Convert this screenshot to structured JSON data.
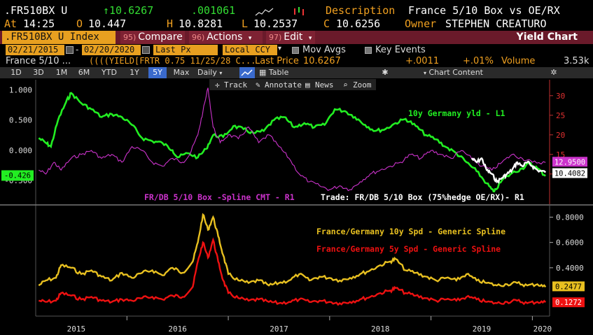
{
  "header": {
    "ticker": ".FR510BX U",
    "price": "↑10.6267",
    "change": ".001061",
    "description_label": "Description",
    "description": "France 5/10 Box vs OE/RX",
    "at_label": "At",
    "time": "14:25",
    "open_label": "O",
    "open": "10.447",
    "high_label": "H",
    "high": "10.8281",
    "low_label": "L",
    "low": "10.2537",
    "close_label": "C",
    "close": "10.6256",
    "owner_label": "Owner",
    "owner": "STEPHEN CREATURO"
  },
  "menu": {
    "ticker_tab": ".FR510BX U Index",
    "compare_num": "95)",
    "compare": "Compare",
    "actions_num": "96)",
    "actions": "Actions",
    "edit_num": "97)",
    "edit": "Edit",
    "title": "Yield Chart"
  },
  "settings": {
    "start_date": "02/21/2015",
    "end_date": "02/20/2020",
    "field": "Last Px",
    "currency": "Local CCY",
    "mov_avgs": "Mov Avgs",
    "key_events": "Key Events"
  },
  "info": {
    "name": "France 5/10 ...",
    "yield_desc": "((((YIELD[FRTR 0.75 11/25/28 C...",
    "last_price_label": "Last Price",
    "last_price": "10.6267",
    "chg_abs": "+.0011",
    "chg_pct": "+.01%",
    "volume_label": "Volume",
    "volume": "3.53k"
  },
  "toolbar": {
    "periods": [
      "1D",
      "3D",
      "1M",
      "6M",
      "YTD",
      "1Y",
      "5Y",
      "Max"
    ],
    "selected": "5Y",
    "frequency": "Daily",
    "table": "Table",
    "chart_content": "Chart Content",
    "track": "Track",
    "annotate": "Annotate",
    "news": "News",
    "zoom": "Zoom"
  },
  "colors": {
    "green": "#22ee22",
    "magenta": "#cc33cc",
    "white": "#ffffff",
    "yellow": "#e8c020",
    "red": "#ee1111",
    "orange": "#f0a020"
  },
  "chart_data": [
    {
      "type": "line",
      "x_ticks": [
        "2015",
        "2016",
        "2017",
        "2018",
        "2019",
        "2020"
      ],
      "y_left_ticks": [
        "1.000",
        "0.500",
        "0.000",
        "-0.500"
      ],
      "y_left_lim": [
        -0.85,
        1.1
      ],
      "y_right_ticks": [
        "30",
        "25",
        "20",
        "15",
        "10"
      ],
      "y_right_lim": [
        3,
        33
      ],
      "series": [
        {
          "name": "10y Germany yld - L1",
          "axis": "left",
          "color": "#22ee22",
          "last_label": "-0.426",
          "points": [
            [
              2015.13,
              0.2
            ],
            [
              2015.2,
              0.12
            ],
            [
              2015.25,
              0.06
            ],
            [
              2015.32,
              0.5
            ],
            [
              2015.4,
              0.8
            ],
            [
              2015.45,
              0.95
            ],
            [
              2015.55,
              0.78
            ],
            [
              2015.65,
              0.68
            ],
            [
              2015.75,
              0.55
            ],
            [
              2015.85,
              0.6
            ],
            [
              2015.95,
              0.55
            ],
            [
              2016.05,
              0.42
            ],
            [
              2016.15,
              0.2
            ],
            [
              2016.25,
              0.15
            ],
            [
              2016.35,
              0.12
            ],
            [
              2016.45,
              0.0
            ],
            [
              2016.5,
              -0.12
            ],
            [
              2016.6,
              -0.05
            ],
            [
              2016.7,
              -0.12
            ],
            [
              2016.78,
              0.02
            ],
            [
              2016.85,
              0.25
            ],
            [
              2016.95,
              0.22
            ],
            [
              2017.05,
              0.4
            ],
            [
              2017.15,
              0.35
            ],
            [
              2017.25,
              0.28
            ],
            [
              2017.35,
              0.32
            ],
            [
              2017.45,
              0.5
            ],
            [
              2017.55,
              0.55
            ],
            [
              2017.65,
              0.38
            ],
            [
              2017.75,
              0.45
            ],
            [
              2017.85,
              0.38
            ],
            [
              2017.95,
              0.42
            ],
            [
              2018.05,
              0.68
            ],
            [
              2018.15,
              0.65
            ],
            [
              2018.25,
              0.55
            ],
            [
              2018.35,
              0.42
            ],
            [
              2018.45,
              0.32
            ],
            [
              2018.55,
              0.35
            ],
            [
              2018.65,
              0.45
            ],
            [
              2018.75,
              0.52
            ],
            [
              2018.85,
              0.4
            ],
            [
              2018.95,
              0.25
            ],
            [
              2019.05,
              0.18
            ],
            [
              2019.15,
              0.05
            ],
            [
              2019.25,
              -0.05
            ],
            [
              2019.35,
              -0.2
            ],
            [
              2019.45,
              -0.35
            ],
            [
              2019.55,
              -0.55
            ],
            [
              2019.62,
              -0.7
            ],
            [
              2019.7,
              -0.5
            ],
            [
              2019.8,
              -0.38
            ],
            [
              2019.9,
              -0.3
            ],
            [
              2019.97,
              -0.22
            ],
            [
              2020.05,
              -0.3
            ],
            [
              2020.13,
              -0.426
            ]
          ]
        },
        {
          "name": "FR/DB 5/10 Box -Spline CMT - R1",
          "axis": "right",
          "color": "#cc33cc",
          "last_label": "12.9500",
          "points": [
            [
              2015.13,
              11
            ],
            [
              2015.2,
              10
            ],
            [
              2015.28,
              13
            ],
            [
              2015.35,
              11
            ],
            [
              2015.45,
              14
            ],
            [
              2015.55,
              15
            ],
            [
              2015.65,
              16
            ],
            [
              2015.75,
              14
            ],
            [
              2015.85,
              15
            ],
            [
              2015.95,
              13
            ],
            [
              2016.05,
              17
            ],
            [
              2016.15,
              16
            ],
            [
              2016.25,
              13
            ],
            [
              2016.35,
              12
            ],
            [
              2016.45,
              14
            ],
            [
              2016.55,
              13
            ],
            [
              2016.62,
              15
            ],
            [
              2016.7,
              20
            ],
            [
              2016.75,
              26
            ],
            [
              2016.8,
              32
            ],
            [
              2016.85,
              22
            ],
            [
              2016.92,
              18
            ],
            [
              2017.0,
              20
            ],
            [
              2017.1,
              19
            ],
            [
              2017.2,
              22
            ],
            [
              2017.3,
              18
            ],
            [
              2017.4,
              20
            ],
            [
              2017.5,
              17
            ],
            [
              2017.6,
              14
            ],
            [
              2017.7,
              10
            ],
            [
              2017.8,
              8
            ],
            [
              2017.9,
              7
            ],
            [
              2018.0,
              6
            ],
            [
              2018.1,
              7
            ],
            [
              2018.2,
              6
            ],
            [
              2018.3,
              8
            ],
            [
              2018.4,
              10
            ],
            [
              2018.5,
              11
            ],
            [
              2018.6,
              12
            ],
            [
              2018.7,
              13
            ],
            [
              2018.8,
              15
            ],
            [
              2018.9,
              14
            ],
            [
              2019.0,
              16
            ],
            [
              2019.1,
              15
            ],
            [
              2019.2,
              14
            ],
            [
              2019.3,
              16
            ],
            [
              2019.4,
              14
            ],
            [
              2019.5,
              12
            ],
            [
              2019.6,
              11
            ],
            [
              2019.7,
              13
            ],
            [
              2019.8,
              15
            ],
            [
              2019.9,
              14
            ],
            [
              2020.0,
              13
            ],
            [
              2020.13,
              12.95
            ]
          ]
        },
        {
          "name": "Trade: FR/DB 5/10 Box (75%hedge OE/RX)- R1",
          "axis": "right",
          "color": "#ffffff",
          "last_label": "10.4082",
          "points": [
            [
              2019.4,
              14
            ],
            [
              2019.45,
              13
            ],
            [
              2019.5,
              14
            ],
            [
              2019.55,
              11
            ],
            [
              2019.6,
              10
            ],
            [
              2019.65,
              8
            ],
            [
              2019.7,
              9
            ],
            [
              2019.75,
              10
            ],
            [
              2019.8,
              11
            ],
            [
              2019.85,
              13
            ],
            [
              2019.9,
              12
            ],
            [
              2019.95,
              13
            ],
            [
              2020.0,
              12
            ],
            [
              2020.05,
              11
            ],
            [
              2020.13,
              10.4082
            ]
          ]
        }
      ]
    },
    {
      "type": "line",
      "x_ticks": [
        "2015",
        "2016",
        "2017",
        "2018",
        "2019",
        "2020"
      ],
      "y_right_ticks": [
        "0.8000",
        "0.6000",
        "0.4000"
      ],
      "y_lim": [
        0.04,
        0.88
      ],
      "series": [
        {
          "name": "France/Germany 10y Spd - Generic Spline",
          "color": "#e8c020",
          "last_label": "0.2477",
          "points": [
            [
              2015.13,
              0.26
            ],
            [
              2015.2,
              0.3
            ],
            [
              2015.3,
              0.32
            ],
            [
              2015.35,
              0.42
            ],
            [
              2015.45,
              0.4
            ],
            [
              2015.55,
              0.35
            ],
            [
              2015.65,
              0.38
            ],
            [
              2015.75,
              0.33
            ],
            [
              2015.85,
              0.3
            ],
            [
              2015.95,
              0.36
            ],
            [
              2016.05,
              0.32
            ],
            [
              2016.15,
              0.36
            ],
            [
              2016.25,
              0.38
            ],
            [
              2016.35,
              0.34
            ],
            [
              2016.45,
              0.4
            ],
            [
              2016.55,
              0.36
            ],
            [
              2016.65,
              0.45
            ],
            [
              2016.7,
              0.6
            ],
            [
              2016.75,
              0.82
            ],
            [
              2016.8,
              0.7
            ],
            [
              2016.85,
              0.8
            ],
            [
              2016.9,
              0.65
            ],
            [
              2016.95,
              0.5
            ],
            [
              2017.0,
              0.35
            ],
            [
              2017.1,
              0.3
            ],
            [
              2017.2,
              0.28
            ],
            [
              2017.3,
              0.3
            ],
            [
              2017.4,
              0.26
            ],
            [
              2017.5,
              0.28
            ],
            [
              2017.6,
              0.3
            ],
            [
              2017.7,
              0.35
            ],
            [
              2017.8,
              0.3
            ],
            [
              2017.9,
              0.33
            ],
            [
              2018.0,
              0.32
            ],
            [
              2018.1,
              0.3
            ],
            [
              2018.2,
              0.32
            ],
            [
              2018.3,
              0.35
            ],
            [
              2018.4,
              0.38
            ],
            [
              2018.5,
              0.42
            ],
            [
              2018.6,
              0.45
            ],
            [
              2018.65,
              0.47
            ],
            [
              2018.75,
              0.38
            ],
            [
              2018.85,
              0.36
            ],
            [
              2018.95,
              0.33
            ],
            [
              2019.05,
              0.3
            ],
            [
              2019.15,
              0.32
            ],
            [
              2019.25,
              0.3
            ],
            [
              2019.35,
              0.35
            ],
            [
              2019.45,
              0.3
            ],
            [
              2019.55,
              0.28
            ],
            [
              2019.65,
              0.26
            ],
            [
              2019.75,
              0.27
            ],
            [
              2019.85,
              0.28
            ],
            [
              2019.95,
              0.26
            ],
            [
              2020.05,
              0.27
            ],
            [
              2020.13,
              0.2477
            ]
          ]
        },
        {
          "name": "France/Germany 5y Spd - Generic Spline",
          "color": "#ee1111",
          "last_label": "0.1272",
          "points": [
            [
              2015.13,
              0.14
            ],
            [
              2015.2,
              0.13
            ],
            [
              2015.3,
              0.14
            ],
            [
              2015.35,
              0.2
            ],
            [
              2015.45,
              0.18
            ],
            [
              2015.55,
              0.15
            ],
            [
              2015.65,
              0.17
            ],
            [
              2015.75,
              0.14
            ],
            [
              2015.85,
              0.13
            ],
            [
              2015.95,
              0.15
            ],
            [
              2016.05,
              0.14
            ],
            [
              2016.15,
              0.16
            ],
            [
              2016.25,
              0.17
            ],
            [
              2016.35,
              0.15
            ],
            [
              2016.45,
              0.18
            ],
            [
              2016.55,
              0.17
            ],
            [
              2016.65,
              0.25
            ],
            [
              2016.7,
              0.45
            ],
            [
              2016.75,
              0.6
            ],
            [
              2016.8,
              0.48
            ],
            [
              2016.85,
              0.62
            ],
            [
              2016.9,
              0.45
            ],
            [
              2016.95,
              0.3
            ],
            [
              2017.0,
              0.2
            ],
            [
              2017.1,
              0.16
            ],
            [
              2017.2,
              0.14
            ],
            [
              2017.3,
              0.15
            ],
            [
              2017.4,
              0.13
            ],
            [
              2017.5,
              0.12
            ],
            [
              2017.6,
              0.13
            ],
            [
              2017.7,
              0.15
            ],
            [
              2017.8,
              0.13
            ],
            [
              2017.9,
              0.14
            ],
            [
              2018.0,
              0.13
            ],
            [
              2018.1,
              0.12
            ],
            [
              2018.2,
              0.13
            ],
            [
              2018.3,
              0.15
            ],
            [
              2018.4,
              0.17
            ],
            [
              2018.5,
              0.2
            ],
            [
              2018.6,
              0.22
            ],
            [
              2018.65,
              0.24
            ],
            [
              2018.75,
              0.2
            ],
            [
              2018.85,
              0.18
            ],
            [
              2018.95,
              0.16
            ],
            [
              2019.05,
              0.14
            ],
            [
              2019.15,
              0.15
            ],
            [
              2019.25,
              0.14
            ],
            [
              2019.35,
              0.17
            ],
            [
              2019.45,
              0.15
            ],
            [
              2019.55,
              0.13
            ],
            [
              2019.65,
              0.12
            ],
            [
              2019.75,
              0.13
            ],
            [
              2019.85,
              0.14
            ],
            [
              2019.95,
              0.12
            ],
            [
              2020.05,
              0.13
            ],
            [
              2020.13,
              0.1272
            ]
          ]
        }
      ]
    }
  ]
}
